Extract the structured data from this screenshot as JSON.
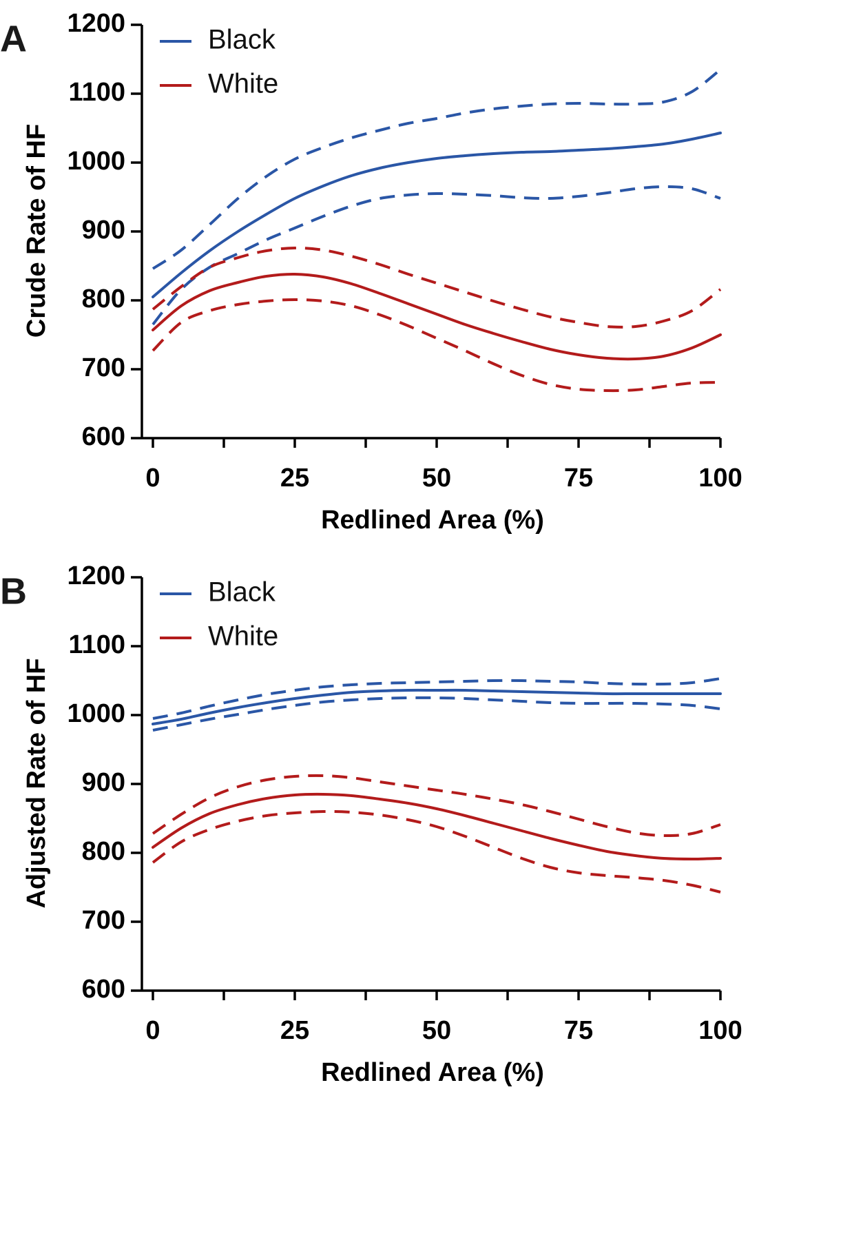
{
  "chart_data": [
    {
      "type": "line",
      "panel_label": "A",
      "xlabel": "Redlined Area (%)",
      "ylabel": "Crude Rate of HF",
      "xlim": [
        0,
        100
      ],
      "ylim": [
        600,
        1200
      ],
      "x_ticks": [
        "0",
        "25",
        "50",
        "75",
        "100"
      ],
      "y_ticks": [
        "600",
        "700",
        "800",
        "900",
        "1000",
        "1100",
        "1200"
      ],
      "legend_position": "top-left",
      "series": [
        {
          "name": "Black",
          "color": "#2a56a6",
          "style": "solid",
          "legend": true,
          "x": [
            0,
            5,
            10,
            15,
            20,
            25,
            30,
            35,
            40,
            45,
            50,
            55,
            60,
            65,
            70,
            75,
            80,
            85,
            90,
            95,
            100
          ],
          "y": [
            805,
            840,
            872,
            900,
            925,
            948,
            966,
            981,
            992,
            1000,
            1006,
            1010,
            1013,
            1015,
            1016,
            1018,
            1020,
            1023,
            1027,
            1034,
            1043
          ]
        },
        {
          "name": "Black upper 95% CI",
          "color": "#2a56a6",
          "style": "dashed",
          "legend": false,
          "x": [
            0,
            5,
            10,
            15,
            20,
            25,
            30,
            35,
            40,
            45,
            50,
            55,
            60,
            65,
            70,
            75,
            80,
            85,
            90,
            95,
            100
          ],
          "y": [
            846,
            873,
            910,
            948,
            980,
            1005,
            1022,
            1036,
            1047,
            1057,
            1064,
            1072,
            1078,
            1082,
            1085,
            1086,
            1085,
            1085,
            1088,
            1103,
            1135
          ]
        },
        {
          "name": "Black lower 95% CI",
          "color": "#2a56a6",
          "style": "dashed",
          "legend": false,
          "x": [
            0,
            5,
            10,
            15,
            20,
            25,
            30,
            35,
            40,
            45,
            50,
            55,
            60,
            65,
            70,
            75,
            80,
            85,
            90,
            95,
            100
          ],
          "y": [
            765,
            816,
            848,
            868,
            888,
            905,
            922,
            937,
            948,
            953,
            955,
            954,
            952,
            949,
            948,
            951,
            956,
            962,
            965,
            962,
            948
          ]
        },
        {
          "name": "White",
          "color": "#b31b1b",
          "style": "solid",
          "legend": true,
          "x": [
            0,
            5,
            10,
            15,
            20,
            25,
            30,
            35,
            40,
            45,
            50,
            55,
            60,
            65,
            70,
            75,
            80,
            85,
            90,
            95,
            100
          ],
          "y": [
            757,
            792,
            814,
            826,
            835,
            838,
            834,
            824,
            810,
            795,
            780,
            765,
            752,
            740,
            729,
            721,
            716,
            715,
            719,
            731,
            750
          ]
        },
        {
          "name": "White upper 95% CI",
          "color": "#b31b1b",
          "style": "dashed",
          "legend": false,
          "x": [
            0,
            5,
            10,
            15,
            20,
            25,
            30,
            35,
            40,
            45,
            50,
            55,
            60,
            65,
            70,
            75,
            80,
            85,
            90,
            95,
            100
          ],
          "y": [
            787,
            820,
            848,
            862,
            872,
            876,
            873,
            864,
            852,
            838,
            825,
            812,
            799,
            787,
            776,
            768,
            762,
            762,
            770,
            785,
            816
          ]
        },
        {
          "name": "White lower 95% CI",
          "color": "#b31b1b",
          "style": "dashed",
          "legend": false,
          "x": [
            0,
            5,
            10,
            15,
            20,
            25,
            30,
            35,
            40,
            45,
            50,
            55,
            60,
            65,
            70,
            75,
            80,
            85,
            90,
            95,
            100
          ],
          "y": [
            727,
            768,
            785,
            794,
            799,
            801,
            799,
            792,
            779,
            763,
            745,
            727,
            708,
            691,
            678,
            671,
            669,
            670,
            675,
            680,
            681
          ]
        }
      ]
    },
    {
      "type": "line",
      "panel_label": "B",
      "xlabel": "Redlined Area (%)",
      "ylabel": "Adjusted Rate of HF",
      "xlim": [
        0,
        100
      ],
      "ylim": [
        600,
        1200
      ],
      "x_ticks": [
        "0",
        "25",
        "50",
        "75",
        "100"
      ],
      "y_ticks": [
        "600",
        "700",
        "800",
        "900",
        "1000",
        "1100",
        "1200"
      ],
      "legend_position": "top-left",
      "series": [
        {
          "name": "Black",
          "color": "#2a56a6",
          "style": "solid",
          "legend": true,
          "x": [
            0,
            5,
            10,
            15,
            20,
            25,
            30,
            35,
            40,
            45,
            50,
            55,
            60,
            65,
            70,
            75,
            80,
            85,
            90,
            95,
            100
          ],
          "y": [
            987,
            994,
            1003,
            1011,
            1018,
            1024,
            1029,
            1033,
            1035,
            1036,
            1036,
            1036,
            1035,
            1034,
            1033,
            1032,
            1031,
            1031,
            1031,
            1031,
            1031
          ]
        },
        {
          "name": "Black upper 95% CI",
          "color": "#2a56a6",
          "style": "dashed",
          "legend": false,
          "x": [
            0,
            5,
            10,
            15,
            20,
            25,
            30,
            35,
            40,
            45,
            50,
            55,
            60,
            65,
            70,
            75,
            80,
            85,
            90,
            95,
            100
          ],
          "y": [
            995,
            1003,
            1013,
            1022,
            1030,
            1036,
            1041,
            1044,
            1046,
            1047,
            1048,
            1049,
            1050,
            1050,
            1049,
            1048,
            1046,
            1045,
            1045,
            1047,
            1053
          ]
        },
        {
          "name": "Black lower 95% CI",
          "color": "#2a56a6",
          "style": "dashed",
          "legend": false,
          "x": [
            0,
            5,
            10,
            15,
            20,
            25,
            30,
            35,
            40,
            45,
            50,
            55,
            60,
            65,
            70,
            75,
            80,
            85,
            90,
            95,
            100
          ],
          "y": [
            978,
            986,
            994,
            1001,
            1008,
            1014,
            1019,
            1022,
            1024,
            1025,
            1025,
            1024,
            1022,
            1020,
            1018,
            1017,
            1017,
            1017,
            1016,
            1014,
            1009
          ]
        },
        {
          "name": "White",
          "color": "#b31b1b",
          "style": "solid",
          "legend": true,
          "x": [
            0,
            5,
            10,
            15,
            20,
            25,
            30,
            35,
            40,
            45,
            50,
            55,
            60,
            65,
            70,
            75,
            80,
            85,
            90,
            95,
            100
          ],
          "y": [
            808,
            836,
            857,
            870,
            879,
            884,
            885,
            883,
            878,
            872,
            864,
            854,
            843,
            832,
            821,
            811,
            802,
            796,
            792,
            791,
            792
          ]
        },
        {
          "name": "White upper 95% CI",
          "color": "#b31b1b",
          "style": "dashed",
          "legend": false,
          "x": [
            0,
            5,
            10,
            15,
            20,
            25,
            30,
            35,
            40,
            45,
            50,
            55,
            60,
            65,
            70,
            75,
            80,
            85,
            90,
            95,
            100
          ],
          "y": [
            828,
            856,
            880,
            896,
            906,
            911,
            912,
            909,
            903,
            897,
            891,
            885,
            878,
            870,
            860,
            849,
            838,
            829,
            825,
            828,
            841
          ]
        },
        {
          "name": "White lower 95% CI",
          "color": "#b31b1b",
          "style": "dashed",
          "legend": false,
          "x": [
            0,
            5,
            10,
            15,
            20,
            25,
            30,
            35,
            40,
            45,
            50,
            55,
            60,
            65,
            70,
            75,
            80,
            85,
            90,
            95,
            100
          ],
          "y": [
            786,
            816,
            834,
            846,
            854,
            858,
            860,
            859,
            855,
            848,
            838,
            824,
            808,
            792,
            779,
            771,
            767,
            764,
            760,
            753,
            743
          ]
        }
      ]
    }
  ]
}
